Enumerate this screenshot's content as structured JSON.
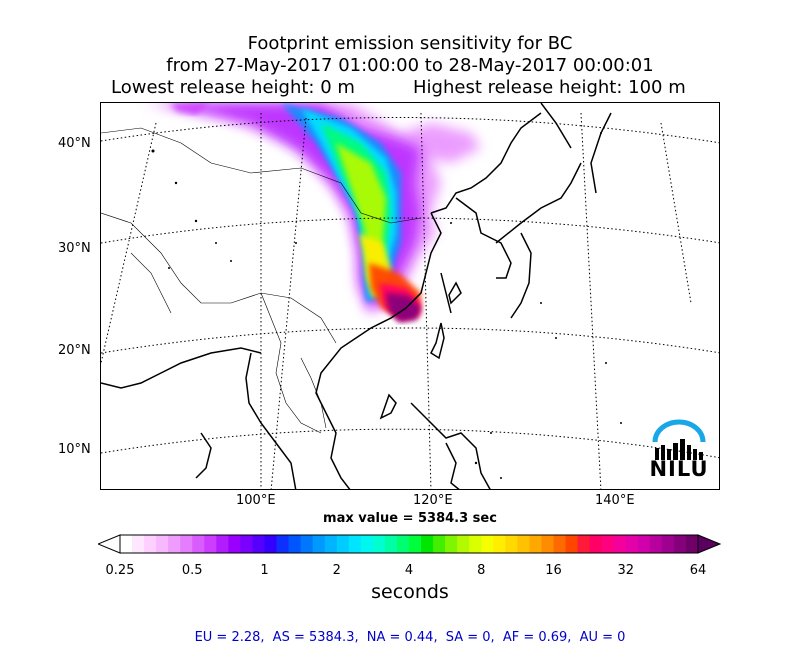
{
  "title": {
    "line1": "Footprint emission sensitivity for BC",
    "line2": "from 27-May-2017 01:00:00 to 28-May-2017 00:00:01",
    "lowest": "Lowest release height: 0 m",
    "highest": "Highest release height: 100 m"
  },
  "map": {
    "lat_labels": [
      "40°N",
      "30°N",
      "20°N",
      "10°N"
    ],
    "lon_labels": [
      "100°E",
      "120°E",
      "140°E"
    ],
    "max_value_text": "max value = 5384.3 sec",
    "logo_text": "NILU"
  },
  "colorbar": {
    "tick_labels": [
      "0.25",
      "0.5",
      "1",
      "2",
      "4",
      "8",
      "16",
      "32",
      "64"
    ],
    "units": "seconds",
    "colors": [
      "#ffffff",
      "#ffe8ff",
      "#ffd0ff",
      "#f7b8ff",
      "#ef9cff",
      "#e57dff",
      "#d95cff",
      "#cc3dff",
      "#b21cff",
      "#9900ff",
      "#7a00ff",
      "#5500ff",
      "#3300ff",
      "#0f2fff",
      "#0055ff",
      "#0077ff",
      "#0099ff",
      "#00b4ff",
      "#00cdff",
      "#00e5ff",
      "#00f7f0",
      "#00ffd0",
      "#00ffa5",
      "#00ff70",
      "#00ff3a",
      "#00e600",
      "#44ee00",
      "#80f500",
      "#b3fa00",
      "#d9ff00",
      "#f5ff00",
      "#ffee00",
      "#ffd900",
      "#ffc200",
      "#ffa800",
      "#ff8c00",
      "#ff6a00",
      "#ff4500",
      "#ff1a3c",
      "#ff0066",
      "#ff0080",
      "#f4009a",
      "#e600aa",
      "#d100aa",
      "#b8009e",
      "#9e008f",
      "#86007c",
      "#6e0068"
    ],
    "extend_colors": {
      "low": "#ffffff",
      "high": "#5a0060"
    }
  },
  "footer": {
    "items": [
      "EU = 2.28,",
      "AS = 5384.3,",
      "NA = 0.44,",
      "SA = 0,",
      "AF = 0.69,",
      "AU = 0"
    ]
  }
}
